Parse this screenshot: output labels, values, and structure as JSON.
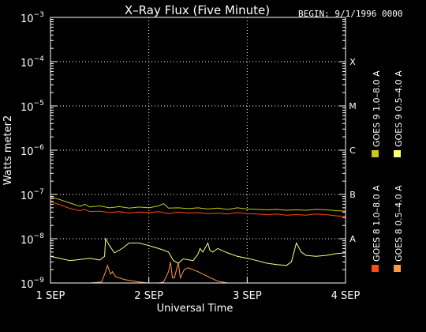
{
  "chart_data": {
    "type": "line",
    "title": "X–Ray Flux (Five Minute)",
    "begin_label": "BEGIN: 9/1/1996 0000",
    "xlabel": "Universal Time",
    "ylabel": "Watts meter2",
    "x_range_days": [
      0,
      3
    ],
    "x_ticks": [
      {
        "value": 0,
        "label": "1 SEP"
      },
      {
        "value": 1,
        "label": "2 SEP"
      },
      {
        "value": 2,
        "label": "3 SEP"
      },
      {
        "value": 3,
        "label": "4 SEP"
      }
    ],
    "y_scale": "log",
    "ylim_exp": [
      -9,
      -3
    ],
    "y_ticks": [
      {
        "exp": -3,
        "base": "10",
        "sup": "−3"
      },
      {
        "exp": -4,
        "base": "10",
        "sup": "−4"
      },
      {
        "exp": -5,
        "base": "10",
        "sup": "−5"
      },
      {
        "exp": -6,
        "base": "10",
        "sup": "−6"
      },
      {
        "exp": -7,
        "base": "10",
        "sup": "−7"
      },
      {
        "exp": -8,
        "base": "10",
        "sup": "−8"
      },
      {
        "exp": -9,
        "base": "10",
        "sup": "−9"
      }
    ],
    "flare_classes": [
      {
        "label": "X",
        "exp": -4
      },
      {
        "label": "M",
        "exp": -5
      },
      {
        "label": "C",
        "exp": -6
      },
      {
        "label": "B",
        "exp": -7
      },
      {
        "label": "A",
        "exp": -8
      }
    ],
    "grid": "dotted",
    "legend_placement": "right",
    "series": [
      {
        "name": "GOES 8  1.0–8.0 A",
        "color": "#ff4a14",
        "x": [
          0.0,
          0.1,
          0.2,
          0.3,
          0.35,
          0.4,
          0.5,
          0.6,
          0.7,
          0.8,
          0.9,
          1.0,
          1.1,
          1.2,
          1.3,
          1.4,
          1.5,
          1.6,
          1.7,
          1.8,
          1.9,
          2.0,
          2.1,
          2.2,
          2.3,
          2.4,
          2.5,
          2.6,
          2.7,
          2.8,
          2.9,
          3.0
        ],
        "y": [
          6.8e-08,
          5.8e-08,
          4.8e-08,
          4.3e-08,
          4.6e-08,
          4.1e-08,
          4.2e-08,
          3.9e-08,
          4.1e-08,
          3.8e-08,
          4e-08,
          3.9e-08,
          4.1e-08,
          3.7e-08,
          4e-08,
          3.8e-08,
          3.9e-08,
          3.7e-08,
          3.8e-08,
          3.6e-08,
          3.9e-08,
          3.7e-08,
          3.6e-08,
          3.5e-08,
          3.6e-08,
          3.4e-08,
          3.5e-08,
          3.4e-08,
          3.6e-08,
          3.5e-08,
          3.3e-08,
          3.2e-08
        ]
      },
      {
        "name": "GOES 8  0.5–4.0 A",
        "color": "#ff9a3c",
        "x": [
          0.0,
          0.4,
          0.52,
          0.56,
          0.58,
          0.61,
          0.63,
          0.66,
          0.75,
          0.9,
          1.0,
          1.05,
          1.1,
          1.15,
          1.2,
          1.22,
          1.24,
          1.26,
          1.29,
          1.3,
          1.32,
          1.36,
          1.4,
          1.5,
          1.6,
          1.7,
          1.8,
          1.9,
          2.0,
          2.2,
          2.4,
          2.6,
          2.8,
          3.0
        ],
        "y": [
          1e-09,
          1e-09,
          1.05e-09,
          1.8e-09,
          2.5e-09,
          1.6e-09,
          1.8e-09,
          1.4e-09,
          1.2e-09,
          1.05e-09,
          1e-09,
          1e-09,
          1e-09,
          1.05e-09,
          1.8e-09,
          3e-09,
          1.3e-09,
          1.3e-09,
          2.4e-09,
          2.8e-09,
          1.3e-09,
          2e-09,
          2.2e-09,
          1.8e-09,
          1.4e-09,
          1.1e-09,
          1e-09,
          1e-09,
          1e-09,
          1e-09,
          1e-09,
          1e-09,
          1e-09,
          1e-09
        ]
      },
      {
        "name": "GOES 9  1.0–8.0 A",
        "color": "#c8c81e",
        "x": [
          0.0,
          0.1,
          0.2,
          0.3,
          0.35,
          0.4,
          0.5,
          0.6,
          0.7,
          0.8,
          0.9,
          1.0,
          1.1,
          1.15,
          1.2,
          1.3,
          1.4,
          1.5,
          1.6,
          1.7,
          1.8,
          1.9,
          2.0,
          2.1,
          2.2,
          2.3,
          2.4,
          2.5,
          2.6,
          2.7,
          2.8,
          2.9,
          3.0
        ],
        "y": [
          8.8e-08,
          7.6e-08,
          6.4e-08,
          5.4e-08,
          6e-08,
          5.2e-08,
          5.5e-08,
          5e-08,
          5.3e-08,
          4.9e-08,
          5.2e-08,
          5e-08,
          5.5e-08,
          6.2e-08,
          4.9e-08,
          5e-08,
          4.8e-08,
          5e-08,
          4.7e-08,
          4.9e-08,
          4.6e-08,
          5e-08,
          4.7e-08,
          4.6e-08,
          4.5e-08,
          4.6e-08,
          4.4e-08,
          4.5e-08,
          4.4e-08,
          4.6e-08,
          4.5e-08,
          4.3e-08,
          4.2e-08
        ]
      },
      {
        "name": "GOES 9  0.5–4.0 A",
        "color": "#ffff7a",
        "x": [
          0.0,
          0.2,
          0.4,
          0.5,
          0.55,
          0.56,
          0.6,
          0.65,
          0.7,
          0.75,
          0.8,
          0.9,
          1.0,
          1.05,
          1.1,
          1.15,
          1.2,
          1.25,
          1.3,
          1.35,
          1.45,
          1.5,
          1.52,
          1.55,
          1.6,
          1.62,
          1.65,
          1.7,
          1.8,
          1.9,
          2.0,
          2.1,
          2.2,
          2.3,
          2.4,
          2.45,
          2.5,
          2.55,
          2.6,
          2.7,
          2.8,
          2.9,
          3.0
        ],
        "y": [
          4e-09,
          3.2e-09,
          3.6e-09,
          3.3e-09,
          4e-09,
          1e-08,
          7e-09,
          4.8e-09,
          5.5e-09,
          6.5e-09,
          8e-09,
          8e-09,
          7e-09,
          6.5e-09,
          6e-09,
          5.5e-09,
          5e-09,
          3.2e-09,
          2.8e-09,
          3.5e-09,
          3.2e-09,
          4.5e-09,
          6e-09,
          5e-09,
          8e-09,
          5.5e-09,
          5e-09,
          6e-09,
          4.8e-09,
          4e-09,
          3.6e-09,
          3.2e-09,
          2.8e-09,
          2.6e-09,
          2.5e-09,
          3e-09,
          8e-09,
          5e-09,
          4.2e-09,
          4e-09,
          4.2e-09,
          4.6e-09,
          4.8e-09
        ]
      }
    ]
  }
}
